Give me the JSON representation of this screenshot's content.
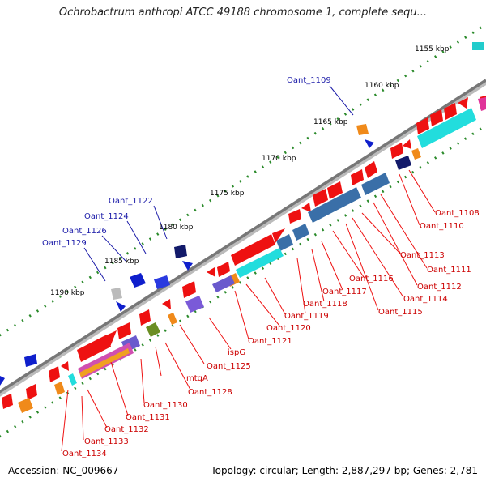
{
  "title": "Ochrobactrum anthropi ATCC 49188 chromosome 1, complete sequ...",
  "footer": {
    "accession": "Accession: NC_009667",
    "summary": "Topology: circular; Length: 2,887,297 bp; Genes: 2,781"
  },
  "ruler": [
    "1155 kbp",
    "1160 kbp",
    "1165 kbp",
    "1170 kbp",
    "1175 kbp",
    "1180 kbp",
    "1185 kbp",
    "1190 kbp"
  ],
  "labels_reverse": [
    "Oant_1108",
    "Oant_1110",
    "Oant_1111",
    "Oant_1112",
    "Oant_1113",
    "Oant_1114",
    "Oant_1115",
    "Oant_1116",
    "Oant_1117",
    "Oant_1118",
    "Oant_1119",
    "Oant_1120",
    "Oant_1121",
    "ispG",
    "Oant_1125",
    "Oant_1128",
    "mtgA",
    "Oant_1130",
    "Oant_1131",
    "Oant_1132",
    "Oant_1133",
    "Oant_1134"
  ],
  "labels_forward": [
    "Oant_1109",
    "Oant_1122",
    "Oant_1124",
    "Oant_1126",
    "Oant_1129"
  ],
  "colors": {
    "cds": "#ee1111",
    "trna": "#0f1fcc",
    "rrna": "#f08a1a",
    "backbone": "#777777",
    "tick": "#2a8a2a",
    "teal": "#22dddd",
    "steel": "#3a6fa8",
    "navy": "#121a6a",
    "violet": "#6a5acd",
    "olive": "#6b8e23",
    "magenta": "#d04fb0",
    "label_reverse": "#cc0000",
    "label_forward": "#1a1aa8"
  }
}
